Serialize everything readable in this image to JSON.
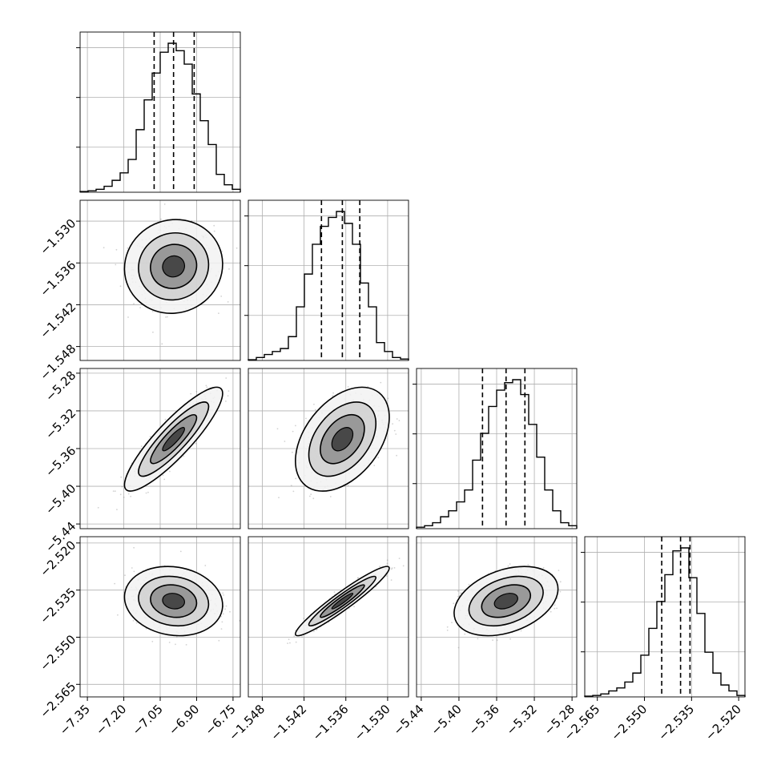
{
  "chart_data": {
    "type": "corner",
    "params": [
      {
        "range": [
          -7.38,
          -6.72
        ],
        "ticks": [
          -7.35,
          -7.2,
          -7.05,
          -6.9,
          -6.75
        ],
        "tick_labels": [
          "−7.35",
          "−7.20",
          "−7.05",
          "−6.90",
          "−6.75"
        ],
        "quantiles": [
          -7.075,
          -6.995,
          -6.91
        ],
        "hist": [
          0.005,
          0.01,
          0.02,
          0.04,
          0.08,
          0.13,
          0.22,
          0.42,
          0.62,
          0.8,
          0.94,
          1.0,
          0.95,
          0.86,
          0.66,
          0.48,
          0.32,
          0.12,
          0.05,
          0.02
        ]
      },
      {
        "range": [
          -1.55,
          -1.527
        ],
        "ticks": [
          -1.548,
          -1.542,
          -1.536,
          -1.53
        ],
        "tick_labels": [
          "−1.548",
          "−1.542",
          "−1.536",
          "−1.530"
        ],
        "quantiles": [
          -1.5395,
          -1.5365,
          -1.534
        ],
        "hist": [
          0.005,
          0.02,
          0.04,
          0.06,
          0.08,
          0.16,
          0.36,
          0.58,
          0.78,
          0.9,
          0.96,
          1.0,
          0.92,
          0.78,
          0.52,
          0.36,
          0.12,
          0.06,
          0.02,
          0.01
        ]
      },
      {
        "range": [
          -5.445,
          -5.275
        ],
        "ticks": [
          -5.44,
          -5.4,
          -5.36,
          -5.32,
          -5.28
        ],
        "tick_labels": [
          "−5.44",
          "−5.40",
          "−5.36",
          "−5.32",
          "−5.28"
        ],
        "quantiles": [
          -5.375,
          -5.35,
          -5.33
        ],
        "hist": [
          0.01,
          0.02,
          0.04,
          0.08,
          0.12,
          0.18,
          0.26,
          0.46,
          0.64,
          0.82,
          0.93,
          0.98,
          1.0,
          0.9,
          0.7,
          0.48,
          0.26,
          0.12,
          0.04,
          0.02
        ]
      },
      {
        "range": [
          -2.569,
          -2.518
        ],
        "ticks": [
          -2.565,
          -2.55,
          -2.535,
          -2.52
        ],
        "tick_labels": [
          "−2.565",
          "−2.550",
          "−2.535",
          "−2.520"
        ],
        "quantiles": [
          -2.5445,
          -2.5385,
          -2.5355
        ],
        "hist": [
          0.005,
          0.01,
          0.02,
          0.04,
          0.06,
          0.1,
          0.16,
          0.28,
          0.46,
          0.64,
          0.82,
          0.98,
          1.0,
          0.8,
          0.56,
          0.3,
          0.16,
          0.08,
          0.04,
          0.01
        ]
      }
    ],
    "pairs": [
      {
        "row": 1,
        "col": 0,
        "corr": 0.05
      },
      {
        "row": 2,
        "col": 0,
        "corr": 0.88
      },
      {
        "row": 2,
        "col": 1,
        "corr": 0.42
      },
      {
        "row": 3,
        "col": 0,
        "corr": -0.12
      },
      {
        "row": 3,
        "col": 1,
        "corr": 0.95
      },
      {
        "row": 3,
        "col": 2,
        "corr": 0.35
      }
    ],
    "grid": true,
    "colors": {
      "line": "#000000",
      "grid": "#b0b0b0",
      "points": "#7f7f7f"
    }
  }
}
